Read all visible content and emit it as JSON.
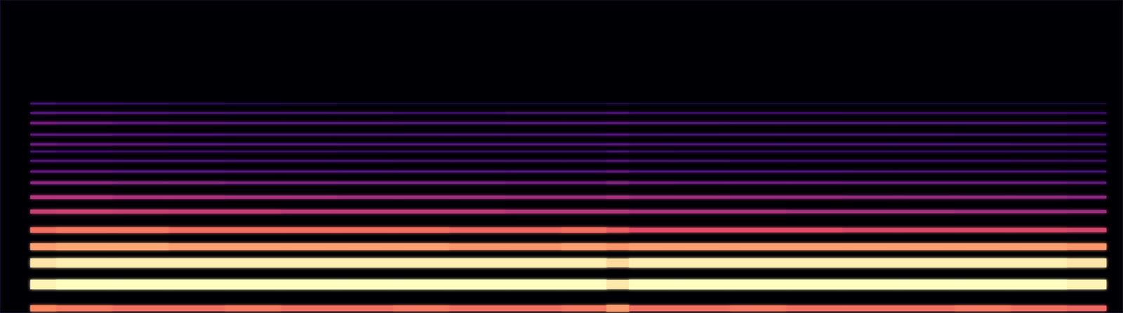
{
  "chart_data": {
    "type": "spectrogram",
    "tick_labels": false,
    "grid": false,
    "xlim": [
      0,
      100
    ],
    "ylim": [
      0,
      100
    ],
    "zlim": [
      0,
      1
    ],
    "bins": [
      2.7,
      5,
      10,
      15,
      20,
      25,
      30,
      35,
      40,
      45,
      50,
      54,
      56,
      60,
      65,
      70,
      75,
      80,
      85,
      90,
      95,
      98.5
    ],
    "series": [
      {
        "frequency": 1.5,
        "values": [
          0.75,
          0.72,
          0.7,
          0.7,
          0.72,
          0.7,
          0.7,
          0.72,
          0.7,
          0.7,
          0.72,
          0.8,
          0.7,
          0.7,
          0.72,
          0.7,
          0.7,
          0.7,
          0.72,
          0.7,
          0.68
        ]
      },
      {
        "frequency": 9.1,
        "values": [
          0.98,
          1,
          1,
          1,
          1,
          1,
          1,
          1,
          1,
          1,
          1,
          0.96,
          1,
          1,
          1,
          1,
          1,
          1,
          1,
          1,
          0.98
        ]
      },
      {
        "frequency": 16,
        "values": [
          0.95,
          0.97,
          0.97,
          0.97,
          0.97,
          0.97,
          0.97,
          0.97,
          0.97,
          0.97,
          0.97,
          0.93,
          0.97,
          0.97,
          0.97,
          0.97,
          0.97,
          0.97,
          0.97,
          0.97,
          0.95
        ]
      },
      {
        "frequency": 21.2,
        "values": [
          0.8,
          0.82,
          0.82,
          0.8,
          0.8,
          0.8,
          0.8,
          0.8,
          0.78,
          0.78,
          0.8,
          0.78,
          0.8,
          0.8,
          0.8,
          0.8,
          0.8,
          0.8,
          0.8,
          0.8,
          0.78
        ]
      },
      {
        "frequency": 26.5,
        "values": [
          0.7,
          0.72,
          0.72,
          0.7,
          0.7,
          0.7,
          0.7,
          0.7,
          0.68,
          0.68,
          0.7,
          0.66,
          0.62,
          0.62,
          0.62,
          0.62,
          0.6,
          0.6,
          0.6,
          0.6,
          0.58
        ]
      },
      {
        "frequency": 32.4,
        "values": [
          0.55,
          0.56,
          0.55,
          0.54,
          0.54,
          0.52,
          0.52,
          0.52,
          0.52,
          0.5,
          0.5,
          0.5,
          0.48,
          0.48,
          0.48,
          0.46,
          0.46,
          0.46,
          0.45,
          0.45,
          0.44
        ]
      },
      {
        "frequency": 37,
        "values": [
          0.5,
          0.5,
          0.48,
          0.48,
          0.46,
          0.46,
          0.45,
          0.45,
          0.45,
          0.44,
          0.44,
          0.46,
          0.44,
          0.44,
          0.43,
          0.43,
          0.42,
          0.42,
          0.42,
          0.42,
          0.4
        ]
      },
      {
        "frequency": 41.6,
        "values": [
          0.4,
          0.4,
          0.38,
          0.38,
          0.36,
          0.36,
          0.35,
          0.35,
          0.35,
          0.34,
          0.34,
          0.38,
          0.34,
          0.33,
          0.33,
          0.33,
          0.32,
          0.32,
          0.32,
          0.32,
          0.3
        ]
      },
      {
        "frequency": 45.2,
        "values": [
          0.3,
          0.3,
          0.28,
          0.28,
          0.27,
          0.27,
          0.26,
          0.26,
          0.26,
          0.26,
          0.26,
          0.3,
          0.25,
          0.25,
          0.25,
          0.25,
          0.24,
          0.24,
          0.24,
          0.24,
          0.23
        ]
      },
      {
        "frequency": 48.6,
        "values": [
          0.26,
          0.25,
          0.24,
          0.24,
          0.23,
          0.23,
          0.23,
          0.22,
          0.22,
          0.22,
          0.22,
          0.26,
          0.22,
          0.22,
          0.21,
          0.21,
          0.21,
          0.21,
          0.21,
          0.2,
          0.2
        ]
      },
      {
        "frequency": 51.6,
        "values": [
          0.22,
          0.21,
          0.2,
          0.2,
          0.2,
          0.2,
          0.19,
          0.19,
          0.19,
          0.19,
          0.19,
          0.22,
          0.19,
          0.18,
          0.18,
          0.18,
          0.18,
          0.18,
          0.18,
          0.18,
          0.17
        ]
      },
      {
        "frequency": 53.9,
        "values": [
          0.32,
          0.3,
          0.28,
          0.27,
          0.26,
          0.26,
          0.25,
          0.25,
          0.25,
          0.25,
          0.25,
          0.27,
          0.24,
          0.24,
          0.24,
          0.24,
          0.24,
          0.24,
          0.24,
          0.23,
          0.22
        ]
      },
      {
        "frequency": 57,
        "values": [
          0.28,
          0.27,
          0.26,
          0.25,
          0.24,
          0.24,
          0.24,
          0.24,
          0.24,
          0.24,
          0.24,
          0.26,
          0.23,
          0.23,
          0.23,
          0.23,
          0.23,
          0.23,
          0.22,
          0.22,
          0.21
        ]
      },
      {
        "frequency": 60.7,
        "values": [
          0.34,
          0.32,
          0.3,
          0.28,
          0.27,
          0.27,
          0.27,
          0.26,
          0.26,
          0.27,
          0.27,
          0.28,
          0.26,
          0.26,
          0.25,
          0.25,
          0.25,
          0.25,
          0.25,
          0.25,
          0.24
        ]
      },
      {
        "frequency": 63.9,
        "values": [
          0.27,
          0.26,
          0.24,
          0.23,
          0.22,
          0.22,
          0.22,
          0.21,
          0.21,
          0.22,
          0.22,
          0.24,
          0.21,
          0.21,
          0.21,
          0.21,
          0.2,
          0.2,
          0.2,
          0.2,
          0.19
        ]
      },
      {
        "frequency": 66.9,
        "values": [
          0.22,
          0.2,
          0.18,
          0.16,
          0.14,
          0.12,
          0.1,
          0.1,
          0.1,
          0.1,
          0.1,
          0.12,
          0.1,
          0.1,
          0.1,
          0.1,
          0.1,
          0.1,
          0.1,
          0.1,
          0.1
        ]
      }
    ]
  }
}
